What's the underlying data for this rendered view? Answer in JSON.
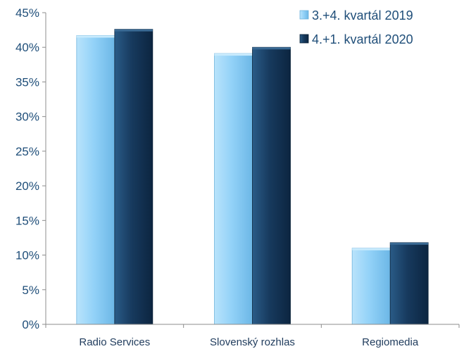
{
  "chart_data": {
    "type": "bar",
    "title": "",
    "xlabel": "",
    "ylabel": "",
    "categories": [
      "Radio Services",
      "Slovenský rozhlas",
      "Regiomedia"
    ],
    "series": [
      {
        "name": "3.+4. kvartál 2019",
        "values": [
          41.7,
          39.1,
          11.0
        ],
        "color": "#8ecff7"
      },
      {
        "name": "4.+1. kvartál 2020",
        "values": [
          42.6,
          40.0,
          11.8
        ],
        "color": "#173a5e"
      }
    ],
    "ylim": [
      0,
      45
    ],
    "yticks": [
      0,
      5,
      10,
      15,
      20,
      25,
      30,
      35,
      40,
      45
    ],
    "ytick_labels": [
      "0%",
      "5%",
      "10%",
      "15%",
      "20%",
      "25%",
      "30%",
      "35%",
      "40%",
      "45%"
    ],
    "grid": false,
    "legend_position": "top-right"
  }
}
